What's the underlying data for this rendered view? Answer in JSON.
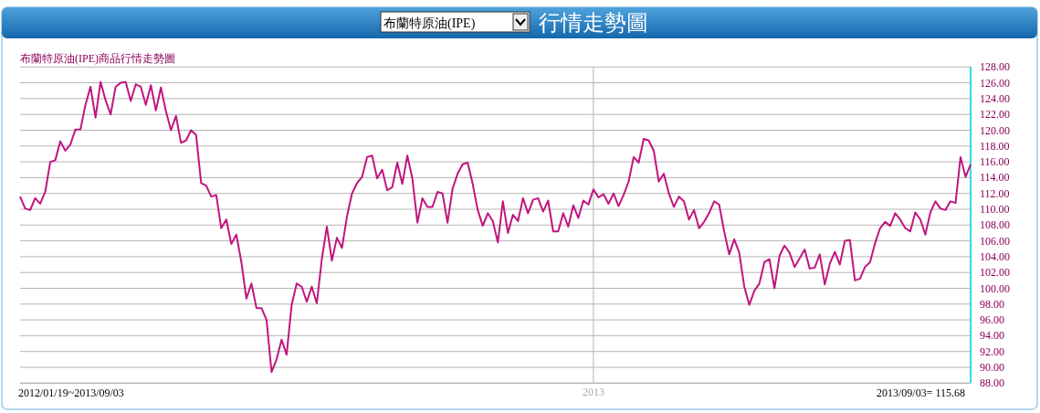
{
  "chart_data": {
    "type": "line",
    "title": "行情走勢圖",
    "subtitle": "布蘭特原油(IPE)商品行情走勢圖",
    "annotations": [
      "布蘭特原油(IPE)",
      "2012/01/19~2013/09/03",
      "2013/09/03= 115.68"
    ],
    "categories": [
      null,
      null,
      null,
      null,
      null,
      null,
      null,
      null,
      null,
      null,
      null,
      null,
      null,
      null,
      null,
      null,
      null,
      null,
      null,
      null,
      null,
      null,
      null,
      null,
      null,
      null,
      null,
      null,
      null,
      null,
      null,
      null,
      null,
      null,
      null,
      null,
      null,
      null,
      null,
      null,
      null,
      null,
      null,
      null,
      null,
      null,
      null,
      null,
      null,
      null,
      null,
      null,
      null,
      null,
      null,
      null,
      null,
      null,
      null,
      null,
      null,
      null,
      null,
      null,
      null,
      null,
      null,
      null,
      null,
      null,
      null,
      null,
      null,
      null,
      null,
      null,
      null,
      null,
      null,
      null,
      null,
      null,
      null,
      null,
      null,
      null,
      null,
      null,
      null,
      null,
      null,
      null,
      null,
      null,
      null,
      null,
      null,
      null,
      null,
      null,
      null,
      null,
      null,
      null,
      null,
      null,
      null,
      null,
      null,
      null,
      null,
      null,
      null,
      null,
      "2013",
      null,
      null,
      null,
      null,
      null,
      null,
      null,
      null,
      null,
      null,
      null,
      null,
      null,
      null,
      null,
      null,
      null,
      null,
      null,
      null,
      null,
      null,
      null,
      null,
      null,
      null,
      null,
      null,
      null,
      null,
      null,
      null,
      null,
      null,
      null,
      null,
      null,
      null,
      null,
      null,
      null,
      null,
      null,
      null,
      null,
      null,
      null,
      null,
      null,
      null,
      null,
      null,
      null,
      null,
      null,
      null,
      null,
      null,
      null,
      null,
      null,
      null,
      null,
      null,
      null,
      null,
      null,
      null,
      null,
      null,
      null,
      null,
      null,
      null,
      null
    ],
    "series": [
      {
        "color": "#c0157f",
        "values": [
          111.6,
          110.1,
          109.9,
          111.4,
          110.7,
          112.2,
          116.0,
          116.2,
          118.6,
          117.4,
          118.2,
          120.1,
          120.1,
          123.2,
          125.5,
          121.6,
          126.1,
          123.8,
          122.0,
          125.5,
          126.0,
          126.1,
          123.7,
          125.8,
          125.5,
          123.2,
          125.7,
          122.5,
          125.4,
          122.4,
          120.0,
          121.8,
          118.4,
          118.7,
          120.0,
          119.4,
          113.3,
          113.0,
          111.6,
          111.8,
          107.6,
          108.7,
          105.6,
          106.8,
          103.3,
          98.7,
          100.6,
          97.5,
          97.5,
          96.0,
          89.4,
          91.0,
          93.5,
          91.6,
          97.9,
          100.6,
          100.2,
          98.3,
          100.2,
          98.1,
          103.7,
          107.8,
          103.5,
          106.4,
          105.1,
          109.1,
          112.0,
          113.3,
          114.1,
          116.6,
          116.8,
          113.9,
          115.0,
          112.4,
          112.8,
          115.9,
          113.2,
          116.8,
          113.9,
          108.3,
          111.4,
          110.3,
          110.3,
          112.2,
          112.0,
          108.3,
          112.6,
          114.5,
          115.7,
          115.9,
          113.2,
          109.9,
          107.9,
          109.5,
          108.5,
          105.8,
          111.0,
          107.0,
          109.3,
          108.5,
          111.4,
          109.5,
          111.2,
          111.4,
          109.7,
          111.1,
          107.2,
          107.2,
          109.5,
          107.8,
          110.5,
          108.9,
          111.1,
          110.6,
          112.5,
          111.5,
          111.9,
          110.7,
          112.0,
          110.4,
          111.8,
          113.5,
          116.6,
          115.9,
          118.9,
          118.7,
          117.4,
          113.5,
          114.5,
          112.0,
          110.3,
          111.6,
          111.0,
          108.7,
          109.9,
          107.6,
          108.4,
          109.5,
          111.0,
          110.6,
          107.2,
          104.3,
          106.2,
          104.5,
          100.2,
          97.9,
          99.7,
          100.6,
          103.3,
          103.7,
          100.0,
          104.1,
          105.4,
          104.5,
          102.7,
          103.8,
          104.9,
          102.5,
          102.6,
          104.3,
          100.5,
          103.1,
          104.6,
          103.0,
          106.0,
          106.1,
          101.0,
          101.2,
          102.7,
          103.3,
          105.7,
          107.6,
          108.4,
          107.9,
          109.5,
          108.7,
          107.6,
          107.2,
          109.6,
          108.7,
          106.8,
          109.6,
          111.0,
          110.1,
          109.9,
          111.0,
          110.8,
          116.6,
          114.1,
          115.68
        ]
      }
    ],
    "ylim": [
      88,
      128
    ],
    "yticks": [
      {
        "value": 88,
        "label": "88.00"
      },
      {
        "value": 90,
        "label": "90.00"
      },
      {
        "value": 92,
        "label": "92.00"
      },
      {
        "value": 94,
        "label": "94.00"
      },
      {
        "value": 96,
        "label": "96.00"
      },
      {
        "value": 98,
        "label": "98.00"
      },
      {
        "value": 100,
        "label": "100.00"
      },
      {
        "value": 102,
        "label": "102.00"
      },
      {
        "value": 104,
        "label": "104.00"
      },
      {
        "value": 106,
        "label": "106.00"
      },
      {
        "value": 108,
        "label": "108.00"
      },
      {
        "value": 110,
        "label": "110.00"
      },
      {
        "value": 112,
        "label": "112.00"
      },
      {
        "value": 114,
        "label": "114.00"
      },
      {
        "value": 116,
        "label": "116.00"
      },
      {
        "value": 118,
        "label": "118.00"
      },
      {
        "value": 120,
        "label": "120.00"
      },
      {
        "value": 122,
        "label": "122.00"
      },
      {
        "value": 124,
        "label": "124.00"
      },
      {
        "value": 126,
        "label": "126.00"
      },
      {
        "value": 128,
        "label": "128.00"
      }
    ],
    "grid": true
  }
}
